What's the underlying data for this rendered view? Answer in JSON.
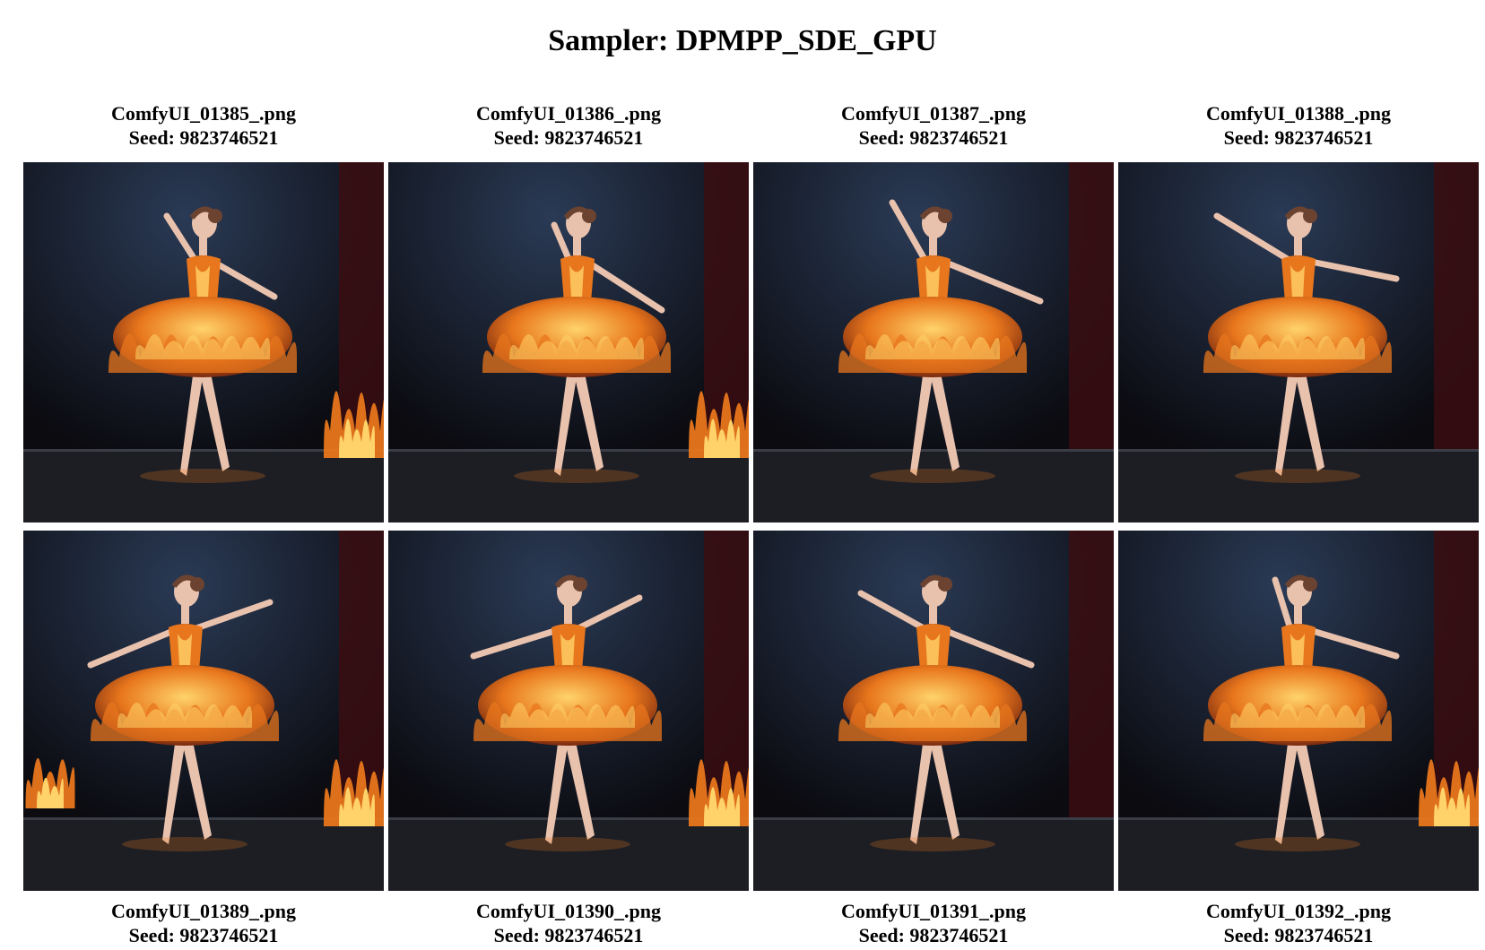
{
  "title": "Sampler: DPMPP_SDE_GPU",
  "images": [
    {
      "filename": "ComfyUI_01385_.png",
      "seed_text": "Seed: 9823746521",
      "subject": "ballerina in flaming tutu on stage"
    },
    {
      "filename": "ComfyUI_01386_.png",
      "seed_text": "Seed: 9823746521",
      "subject": "ballerina in flaming tutu on stage"
    },
    {
      "filename": "ComfyUI_01387_.png",
      "seed_text": "Seed: 9823746521",
      "subject": "ballerina in flaming tutu on stage"
    },
    {
      "filename": "ComfyUI_01388_.png",
      "seed_text": "Seed: 9823746521",
      "subject": "ballerina in flaming tutu on stage"
    },
    {
      "filename": "ComfyUI_01389_.png",
      "seed_text": "Seed: 9823746521",
      "subject": "ballerina in flaming tutu on stage"
    },
    {
      "filename": "ComfyUI_01390_.png",
      "seed_text": "Seed: 9823746521",
      "subject": "ballerina in flaming tutu on stage"
    },
    {
      "filename": "ComfyUI_01391_.png",
      "seed_text": "Seed: 9823746521",
      "subject": "ballerina in flaming tutu on stage"
    },
    {
      "filename": "ComfyUI_01392_.png",
      "seed_text": "Seed: 9823746521",
      "subject": "ballerina in flaming tutu on stage"
    }
  ],
  "colors": {
    "stage_bg": "#0b0b10",
    "curtain": "#3a0d10",
    "floor": "#1c1e24",
    "flame_outer": "#e8761c",
    "flame_inner": "#ffd36a",
    "skin": "#e9c2ae"
  }
}
